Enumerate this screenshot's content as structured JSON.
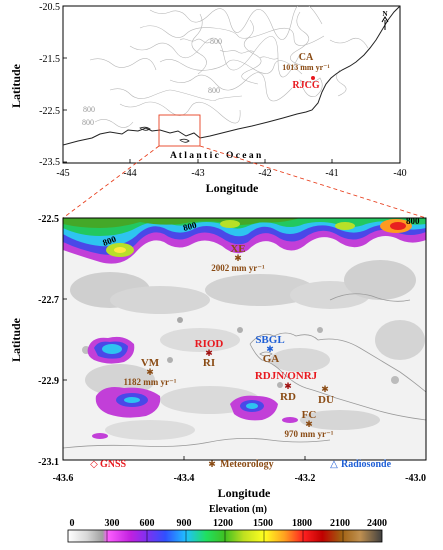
{
  "top_map": {
    "ylabel": "Latitude",
    "xlabel": "Longitude",
    "y_ticks": [
      "-20.5",
      "-21.5",
      "-22.5",
      "-23.5"
    ],
    "x_ticks": [
      "-45",
      "-44",
      "-43",
      "-42",
      "-41",
      "-40"
    ],
    "contour_labels": [
      "800",
      "800",
      "800",
      "800"
    ],
    "ocean_label": "A t l a n t i c   O c e a n",
    "north_label": "N",
    "ca_label": "CA",
    "ca_precip": "1013 mm yr⁻¹",
    "rjcg_label": "RJCG"
  },
  "bottom_map": {
    "ylabel": "Latitude",
    "xlabel": "Longitude",
    "y_ticks": [
      "-22.5",
      "-22.7",
      "-22.9",
      "-23.1"
    ],
    "x_ticks": [
      "-43.6",
      "-43.4",
      "-43.2",
      "-43.0"
    ],
    "contour_labels": [
      "800",
      "800",
      "800"
    ],
    "stations": {
      "xe": {
        "name": "XE",
        "precip": "2002 mm yr⁻¹"
      },
      "vm": {
        "name": "VM",
        "precip": "1182 mm yr⁻¹"
      },
      "fc": {
        "name": "FC",
        "precip": "970 mm yr⁻¹"
      },
      "riod": "RIOD",
      "ri": "RI",
      "sbgl": "SBGL",
      "ga": "GA",
      "rdjn": "RDJN/ONRJ",
      "rd": "RD",
      "du": "DU"
    },
    "legend": {
      "gnss": "GNSS",
      "meteorology": "Meteorology",
      "radiosonde": "Radiosonde"
    }
  },
  "colorbar": {
    "title": "Elevation (m)",
    "ticks": [
      "0",
      "300",
      "600",
      "900",
      "1200",
      "1500",
      "1800",
      "2100",
      "2400"
    ]
  },
  "colors": {
    "gnss": "#e8191f",
    "meteorology": "#8a4b14",
    "radiosonde": "#1f5fd6"
  }
}
